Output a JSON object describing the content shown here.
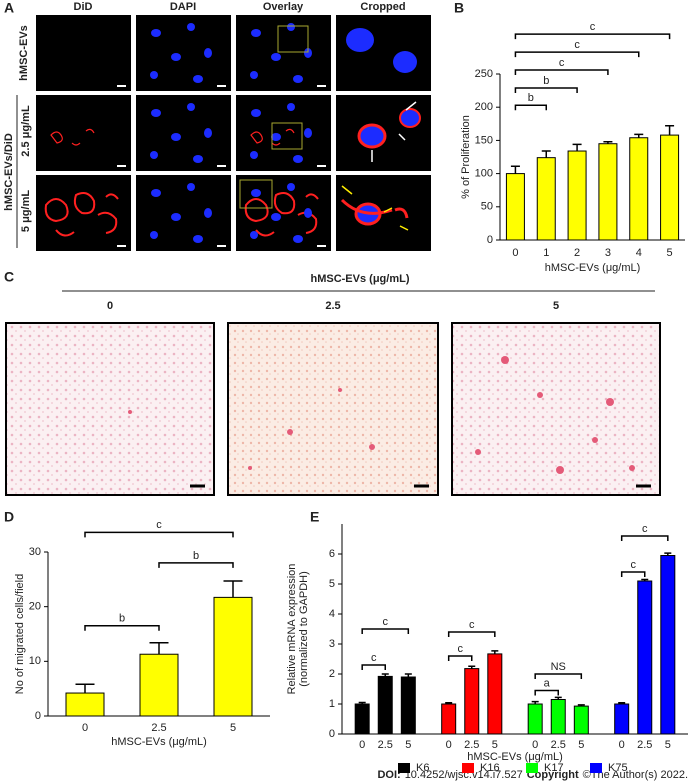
{
  "panel_labels": [
    "A",
    "B",
    "C",
    "D",
    "E"
  ],
  "panel_a": {
    "columns": [
      "DiD",
      "DAPI",
      "Overlay",
      "Cropped"
    ],
    "rows": [
      "hMSC-EVs",
      "hMSC-EVs/DiD",
      "2.5 μg/mL",
      "5 μg/mL"
    ]
  },
  "panel_c": {
    "title": "hMSC-EVs (μg/mL)",
    "labels": [
      "0",
      "2.5",
      "5"
    ]
  },
  "chart_data": [
    {
      "type": "bar",
      "ylabel": "% of Proliferation",
      "xlabel": "hMSC-EVs (μg/mL)",
      "categories": [
        "0",
        "1",
        "2",
        "3",
        "4",
        "5"
      ],
      "values": [
        100,
        124,
        134,
        145,
        154,
        158
      ],
      "errors": [
        11,
        10,
        10,
        3,
        5,
        14
      ],
      "color": "#ffff00",
      "ylim": [
        0,
        250
      ],
      "yticks": [
        0,
        50,
        100,
        150,
        200,
        250
      ],
      "brackets": [
        {
          "from": "0",
          "to": "1",
          "y": 203,
          "label": "b"
        },
        {
          "from": "0",
          "to": "2",
          "y": 229,
          "label": "b"
        },
        {
          "from": "0",
          "to": "3",
          "y": 256,
          "label": "c"
        },
        {
          "from": "0",
          "to": "4",
          "y": 283,
          "label": "c"
        },
        {
          "from": "0",
          "to": "5",
          "y": 310,
          "label": "c"
        }
      ]
    },
    {
      "type": "bar",
      "ylabel": "No of migrated cells/field",
      "xlabel": "hMSC-EVs (μg/mL)",
      "categories": [
        "0",
        "2.5",
        "5"
      ],
      "values": [
        4.2,
        11.3,
        21.7
      ],
      "errors": [
        1.6,
        2.1,
        3.0
      ],
      "color": "#ffff00",
      "ylim": [
        0,
        30
      ],
      "yticks": [
        0,
        10,
        20,
        30
      ],
      "brackets": [
        {
          "from": "0",
          "to": "2.5",
          "y": 16.5,
          "label": "b"
        },
        {
          "from": "2.5",
          "to": "5",
          "y": 28,
          "label": "b"
        },
        {
          "from": "0",
          "to": "5",
          "y": 33.6,
          "label": "c"
        }
      ]
    },
    {
      "type": "bar",
      "ylabel": [
        "Relative mRNA expression",
        "(normalized to GAPDH)"
      ],
      "xlabel": "hMSC-EVs (μg/mL)",
      "categories": [
        "0",
        "2.5",
        "5"
      ],
      "ylim": [
        0,
        7
      ],
      "yticks": [
        0,
        1,
        2,
        3,
        4,
        5,
        6
      ],
      "series": [
        {
          "name": "K6",
          "color": "#000000",
          "values": [
            1.0,
            1.92,
            1.9
          ],
          "errors": [
            0.05,
            0.08,
            0.1
          ],
          "brackets": [
            {
              "from": "0",
              "to": "2.5",
              "y": 2.3,
              "label": "c"
            },
            {
              "from": "0",
              "to": "5",
              "y": 3.5,
              "label": "c"
            }
          ]
        },
        {
          "name": "K16",
          "color": "#ff0000",
          "values": [
            1.0,
            2.18,
            2.67
          ],
          "errors": [
            0.04,
            0.08,
            0.1
          ],
          "brackets": [
            {
              "from": "0",
              "to": "2.5",
              "y": 2.6,
              "label": "c"
            },
            {
              "from": "0",
              "to": "5",
              "y": 3.4,
              "label": "c"
            }
          ]
        },
        {
          "name": "K17",
          "color": "#00ff00",
          "values": [
            1.0,
            1.15,
            0.93
          ],
          "errors": [
            0.08,
            0.07,
            0.04
          ],
          "brackets": [
            {
              "from": "0",
              "to": "2.5",
              "y": 1.45,
              "label": "a"
            },
            {
              "from": "0",
              "to": "5",
              "y": 2.0,
              "label": "NS"
            }
          ]
        },
        {
          "name": "K75",
          "color": "#0000ff",
          "values": [
            1.0,
            5.1,
            5.95
          ],
          "errors": [
            0.04,
            0.05,
            0.08
          ],
          "brackets": [
            {
              "from": "0",
              "to": "2.5",
              "y": 5.4,
              "label": "c"
            },
            {
              "from": "0",
              "to": "5",
              "y": 6.6,
              "label": "c"
            }
          ]
        }
      ]
    }
  ],
  "footer": {
    "doi_label": "DOI:",
    "doi": "10.4252/wjsc.v14.i7.527",
    "copyright_label": "Copyright",
    "copyright": "©The Author(s) 2022."
  }
}
